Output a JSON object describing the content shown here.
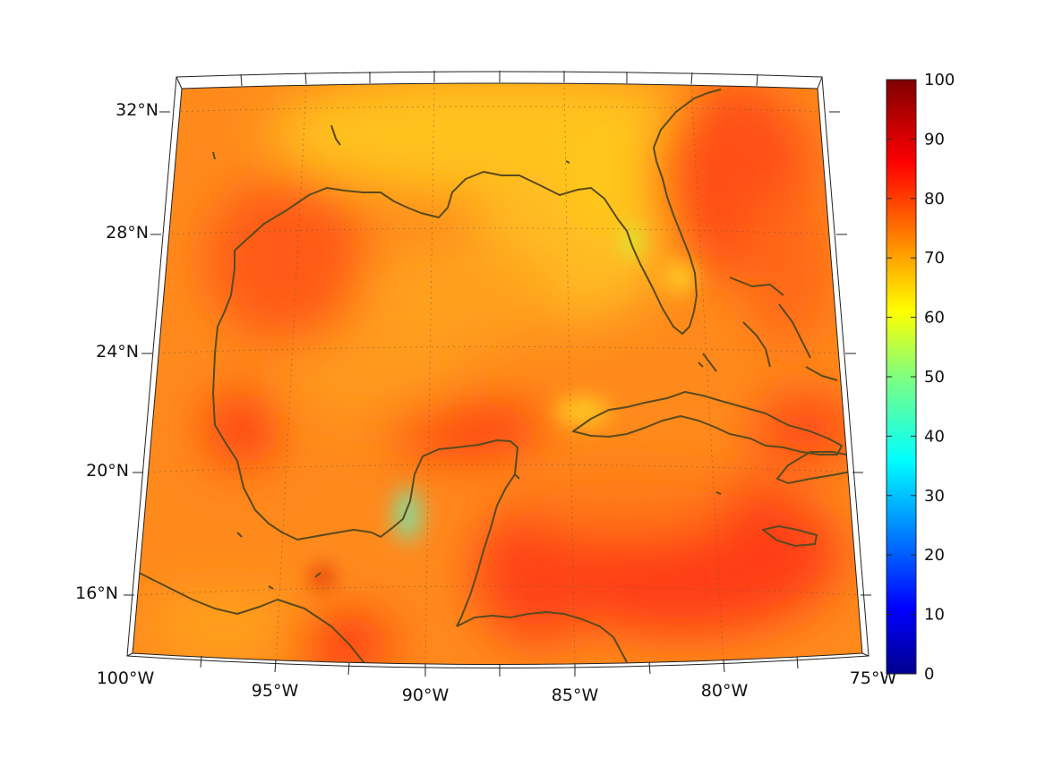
{
  "map": {
    "projection": "conic",
    "lon_range": [
      -100,
      -75
    ],
    "lat_range": [
      14,
      33
    ],
    "lat_ticks": [
      {
        "value": 32,
        "label": "32°N"
      },
      {
        "value": 28,
        "label": "28°N"
      },
      {
        "value": 24,
        "label": "24°N"
      },
      {
        "value": 20,
        "label": "20°N"
      },
      {
        "value": 16,
        "label": "16°N"
      }
    ],
    "lon_ticks": [
      {
        "value": -100,
        "label": "100°W"
      },
      {
        "value": -95,
        "label": "95°W"
      },
      {
        "value": -90,
        "label": "90°W"
      },
      {
        "value": -85,
        "label": "85°W"
      },
      {
        "value": -80,
        "label": "80°W"
      },
      {
        "value": -75,
        "label": "75°W"
      }
    ],
    "grid": true,
    "coastline_color": "#5a4a1e",
    "field_palette": "jet",
    "field_range": [
      0,
      100
    ]
  },
  "colorbar": {
    "min": 0,
    "max": 100,
    "colormap": "jet",
    "ticks": [
      "0",
      "10",
      "20",
      "30",
      "40",
      "50",
      "60",
      "70",
      "80",
      "90",
      "100"
    ]
  }
}
